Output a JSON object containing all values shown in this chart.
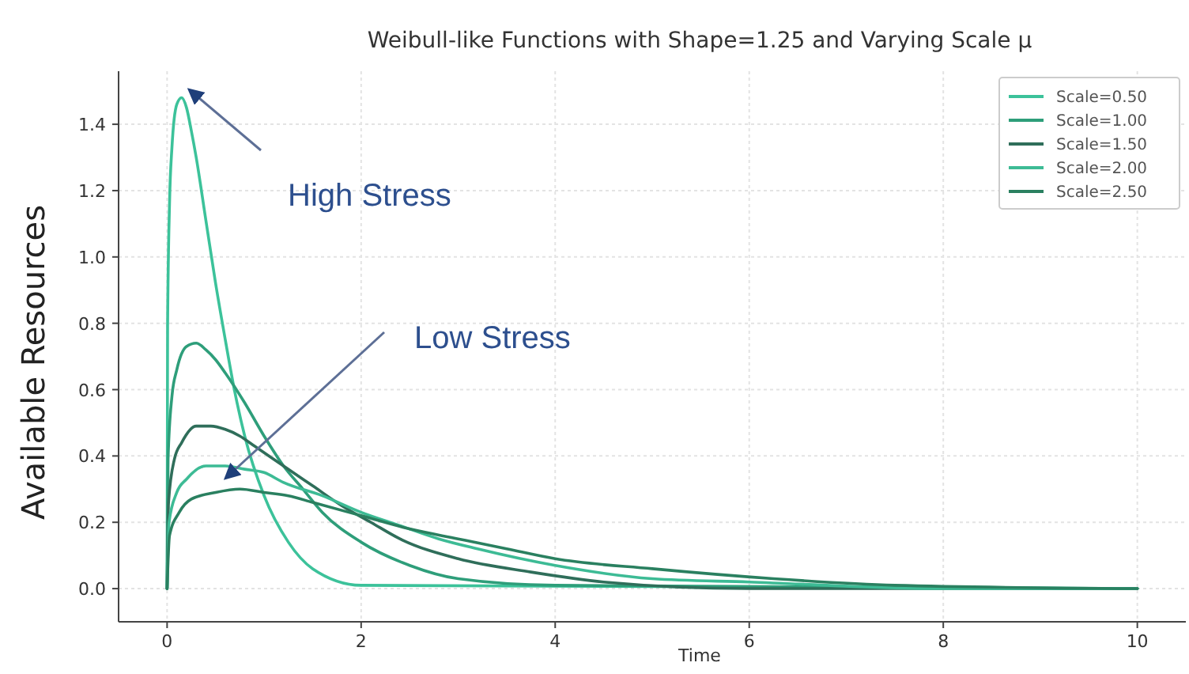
{
  "chart_data": {
    "type": "line",
    "title": "Weibull-like Functions with Shape=1.25 and Varying Scale μ",
    "xlabel": "Time",
    "ylabel": "Available Resources",
    "xlim": [
      -0.5,
      10.5
    ],
    "xticks": [
      0,
      2,
      4,
      6,
      8,
      10
    ],
    "ylim": [
      -0.1,
      1.56
    ],
    "yticks": [
      {
        "value": 0,
        "label": "0.0"
      },
      0.2,
      0.4,
      0.6,
      0.8,
      {
        "value": 1,
        "label": "1.0"
      },
      1.2,
      1.4
    ],
    "grid": true,
    "legend": "top right",
    "annotations": [
      "High Stress",
      "Low Stress"
    ],
    "series": [
      {
        "name": "Scale=0.50",
        "color": "#3cc29a",
        "x": [
          0,
          0.005,
          0.025,
          0.05,
          0.1,
          0.15,
          0.2,
          0.25,
          0.3,
          0.4,
          0.5,
          0.6,
          0.7,
          0.8,
          1,
          1.25,
          1.5,
          2,
          10
        ],
        "values": [
          0,
          0.79,
          1.16,
          1.33,
          1.46,
          1.48,
          1.45,
          1.38,
          1.3,
          1.11,
          0.92,
          0.75,
          0.59,
          0.46,
          0.28,
          0.14,
          0.06,
          0.01,
          0
        ]
      },
      {
        "name": "Scale=1.00",
        "color": "#2e9e7a",
        "x": [
          0,
          0.01,
          0.05,
          0.1,
          0.2,
          0.3,
          0.4,
          0.5,
          0.6,
          0.8,
          1,
          1.2,
          1.4,
          1.6,
          2,
          2.5,
          3,
          4,
          10
        ],
        "values": [
          0,
          0.39,
          0.58,
          0.66,
          0.73,
          0.74,
          0.72,
          0.69,
          0.65,
          0.56,
          0.46,
          0.37,
          0.3,
          0.23,
          0.14,
          0.07,
          0.03,
          0.01,
          0
        ]
      },
      {
        "name": "Scale=1.50",
        "color": "#2f6e5a",
        "x": [
          0,
          0.015,
          0.075,
          0.15,
          0.3,
          0.45,
          0.6,
          0.75,
          0.9,
          1.2,
          1.5,
          1.8,
          2.1,
          2.4,
          3,
          3.75,
          4.5,
          6,
          10
        ],
        "values": [
          0,
          0.26,
          0.39,
          0.44,
          0.49,
          0.49,
          0.48,
          0.46,
          0.43,
          0.37,
          0.31,
          0.25,
          0.2,
          0.15,
          0.09,
          0.05,
          0.02,
          0,
          0
        ]
      },
      {
        "name": "Scale=2.00",
        "color": "#3dbb95",
        "x": [
          0,
          0.02,
          0.1,
          0.2,
          0.4,
          0.6,
          0.8,
          1,
          1.2,
          1.6,
          2,
          2.4,
          2.8,
          3.2,
          4,
          5,
          6,
          8,
          10
        ],
        "values": [
          0,
          0.2,
          0.29,
          0.33,
          0.37,
          0.37,
          0.36,
          0.35,
          0.32,
          0.28,
          0.23,
          0.19,
          0.15,
          0.12,
          0.07,
          0.03,
          0.02,
          0,
          0
        ]
      },
      {
        "name": "Scale=2.50",
        "color": "#2a8060",
        "x": [
          0,
          0.025,
          0.125,
          0.25,
          0.5,
          0.75,
          1,
          1.25,
          1.5,
          2,
          2.5,
          3,
          3.5,
          4,
          5,
          6.25,
          7.5,
          10
        ],
        "values": [
          0,
          0.16,
          0.23,
          0.27,
          0.29,
          0.3,
          0.29,
          0.28,
          0.26,
          0.22,
          0.18,
          0.15,
          0.12,
          0.09,
          0.06,
          0.03,
          0.01,
          0
        ]
      }
    ]
  }
}
